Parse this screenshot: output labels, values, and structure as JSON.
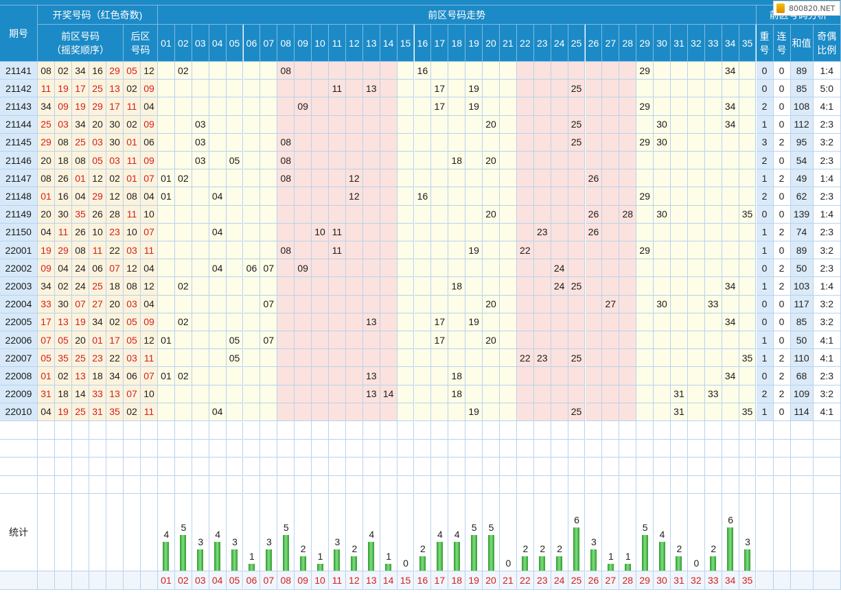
{
  "header": {
    "period": "期号",
    "draw_group": "开奖号码（红色奇数)",
    "front_label": [
      "前区号码",
      "（摇奖顺序）"
    ],
    "back_label": [
      "后区",
      "号码"
    ],
    "trend_title": "前区号码走势",
    "analysis_title": "前区号码分析",
    "analysis_cols": [
      [
        "重",
        "号"
      ],
      [
        "连",
        "号"
      ],
      [
        "和值"
      ],
      [
        "奇偶",
        "比例"
      ]
    ],
    "numbers": [
      "01",
      "02",
      "03",
      "04",
      "05",
      "06",
      "07",
      "08",
      "09",
      "10",
      "11",
      "12",
      "13",
      "14",
      "15",
      "16",
      "17",
      "18",
      "19",
      "20",
      "21",
      "22",
      "23",
      "24",
      "25",
      "26",
      "27",
      "28",
      "29",
      "30",
      "31",
      "32",
      "33",
      "34",
      "35"
    ]
  },
  "rows": [
    {
      "period": "21141",
      "front": [
        "08",
        "02",
        "34",
        "16",
        "29"
      ],
      "back": [
        "05",
        "12"
      ],
      "repeat": "0",
      "consec": "0",
      "sum": "89",
      "ratio": "1:4"
    },
    {
      "period": "21142",
      "front": [
        "11",
        "19",
        "17",
        "25",
        "13"
      ],
      "back": [
        "02",
        "09"
      ],
      "repeat": "0",
      "consec": "0",
      "sum": "85",
      "ratio": "5:0"
    },
    {
      "period": "21143",
      "front": [
        "34",
        "09",
        "19",
        "29",
        "17"
      ],
      "back": [
        "11",
        "04"
      ],
      "repeat": "2",
      "consec": "0",
      "sum": "108",
      "ratio": "4:1"
    },
    {
      "period": "21144",
      "front": [
        "25",
        "03",
        "34",
        "20",
        "30"
      ],
      "back": [
        "02",
        "09"
      ],
      "repeat": "1",
      "consec": "0",
      "sum": "112",
      "ratio": "2:3"
    },
    {
      "period": "21145",
      "front": [
        "29",
        "08",
        "25",
        "03",
        "30"
      ],
      "back": [
        "01",
        "06"
      ],
      "repeat": "3",
      "consec": "2",
      "sum": "95",
      "ratio": "3:2"
    },
    {
      "period": "21146",
      "front": [
        "20",
        "18",
        "08",
        "05",
        "03"
      ],
      "back": [
        "11",
        "09"
      ],
      "repeat": "2",
      "consec": "0",
      "sum": "54",
      "ratio": "2:3"
    },
    {
      "period": "21147",
      "front": [
        "08",
        "26",
        "01",
        "12",
        "02"
      ],
      "back": [
        "01",
        "07"
      ],
      "repeat": "1",
      "consec": "2",
      "sum": "49",
      "ratio": "1:4"
    },
    {
      "period": "21148",
      "front": [
        "01",
        "16",
        "04",
        "29",
        "12"
      ],
      "back": [
        "08",
        "04"
      ],
      "repeat": "2",
      "consec": "0",
      "sum": "62",
      "ratio": "2:3"
    },
    {
      "period": "21149",
      "front": [
        "20",
        "30",
        "35",
        "26",
        "28"
      ],
      "back": [
        "11",
        "10"
      ],
      "repeat": "0",
      "consec": "0",
      "sum": "139",
      "ratio": "1:4"
    },
    {
      "period": "21150",
      "front": [
        "04",
        "11",
        "26",
        "10",
        "23"
      ],
      "back": [
        "10",
        "07"
      ],
      "repeat": "1",
      "consec": "2",
      "sum": "74",
      "ratio": "2:3"
    },
    {
      "period": "22001",
      "front": [
        "19",
        "29",
        "08",
        "11",
        "22"
      ],
      "back": [
        "03",
        "11"
      ],
      "repeat": "1",
      "consec": "0",
      "sum": "89",
      "ratio": "3:2"
    },
    {
      "period": "22002",
      "front": [
        "09",
        "04",
        "24",
        "06",
        "07"
      ],
      "back": [
        "12",
        "04"
      ],
      "repeat": "0",
      "consec": "2",
      "sum": "50",
      "ratio": "2:3"
    },
    {
      "period": "22003",
      "front": [
        "34",
        "02",
        "24",
        "25",
        "18"
      ],
      "back": [
        "08",
        "12"
      ],
      "repeat": "1",
      "consec": "2",
      "sum": "103",
      "ratio": "1:4"
    },
    {
      "period": "22004",
      "front": [
        "33",
        "30",
        "07",
        "27",
        "20"
      ],
      "back": [
        "03",
        "04"
      ],
      "repeat": "0",
      "consec": "0",
      "sum": "117",
      "ratio": "3:2"
    },
    {
      "period": "22005",
      "front": [
        "17",
        "13",
        "19",
        "34",
        "02"
      ],
      "back": [
        "05",
        "09"
      ],
      "repeat": "0",
      "consec": "0",
      "sum": "85",
      "ratio": "3:2"
    },
    {
      "period": "22006",
      "front": [
        "07",
        "05",
        "20",
        "01",
        "17"
      ],
      "back": [
        "05",
        "12"
      ],
      "repeat": "1",
      "consec": "0",
      "sum": "50",
      "ratio": "4:1"
    },
    {
      "period": "22007",
      "front": [
        "05",
        "35",
        "25",
        "23",
        "22"
      ],
      "back": [
        "03",
        "11"
      ],
      "repeat": "1",
      "consec": "2",
      "sum": "110",
      "ratio": "4:1"
    },
    {
      "period": "22008",
      "front": [
        "01",
        "02",
        "13",
        "18",
        "34"
      ],
      "back": [
        "06",
        "07"
      ],
      "repeat": "0",
      "consec": "2",
      "sum": "68",
      "ratio": "2:3"
    },
    {
      "period": "22009",
      "front": [
        "31",
        "18",
        "14",
        "33",
        "13"
      ],
      "back": [
        "07",
        "10"
      ],
      "repeat": "2",
      "consec": "2",
      "sum": "109",
      "ratio": "3:2"
    },
    {
      "period": "22010",
      "front": [
        "04",
        "19",
        "25",
        "31",
        "35"
      ],
      "back": [
        "02",
        "11"
      ],
      "repeat": "1",
      "consec": "0",
      "sum": "114",
      "ratio": "4:1"
    }
  ],
  "stats": {
    "label": "统计",
    "counts": [
      4,
      5,
      3,
      4,
      3,
      1,
      3,
      5,
      2,
      1,
      3,
      2,
      4,
      1,
      0,
      2,
      4,
      4,
      5,
      5,
      0,
      2,
      2,
      2,
      6,
      3,
      1,
      1,
      5,
      4,
      2,
      0,
      2,
      6,
      3
    ]
  },
  "watermark": "800820.NET",
  "colors": {
    "header": "#1c8ac6",
    "red": "#d21e1e",
    "yellow_band": "#fefde8",
    "pink_band": "#fbe2de",
    "bar": "#2f9a2f"
  }
}
